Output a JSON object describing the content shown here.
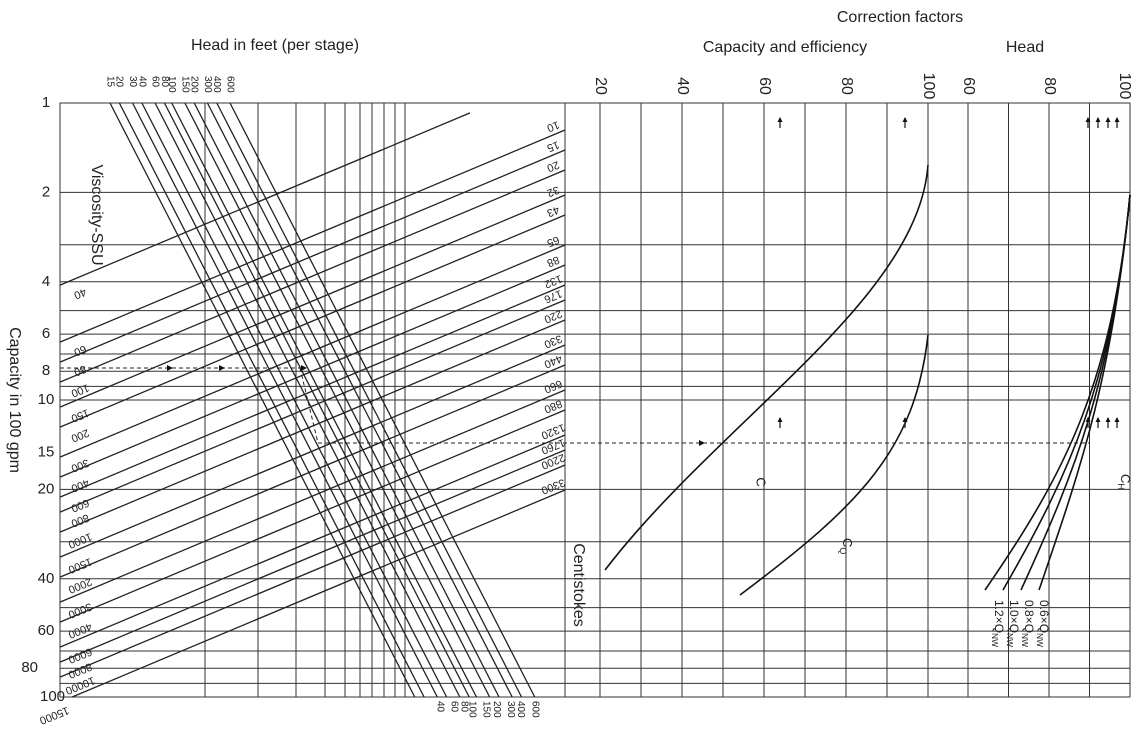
{
  "header": {
    "correction_factors": "Correction factors",
    "head_in_feet": "Head in feet (per stage)",
    "capacity_efficiency": "Capacity and efficiency",
    "head": "Head"
  },
  "axes": {
    "capacity_label": "Capacity in 100 gpm",
    "capacity_ticks": [
      "1",
      "2",
      "4",
      "6",
      "8",
      "10",
      "15",
      "20",
      "40",
      "60",
      "80",
      "100"
    ],
    "efficiency_ticks": [
      "20",
      "40",
      "60",
      "80",
      "100"
    ],
    "head_factor_ticks": [
      "60",
      "80",
      "100"
    ],
    "head_feet_top": [
      "15",
      "20",
      "30",
      "40",
      "60",
      "80",
      "100",
      "150",
      "200",
      "300",
      "400",
      "600"
    ],
    "head_feet_bottom": [
      "40",
      "60",
      "80",
      "100",
      "150",
      "200",
      "300",
      "400",
      "600"
    ]
  },
  "viscosity": {
    "ssu_label": "Viscosity-SSU",
    "cst_label": "Centistokes",
    "ssu": [
      "40",
      "60",
      "80",
      "100",
      "150",
      "200",
      "300",
      "400",
      "600",
      "800",
      "1000",
      "1500",
      "2000",
      "3000",
      "4000",
      "6000",
      "8000",
      "10000",
      "15000"
    ],
    "cst": [
      "10",
      "15",
      "20",
      "32",
      "43",
      "65",
      "88",
      "132",
      "176",
      "220",
      "330",
      "440",
      "660",
      "880",
      "1320",
      "1760",
      "2200",
      "3300"
    ]
  },
  "curves": {
    "efficiency": "C",
    "capacity": {
      "text": "C",
      "sub": "Q"
    },
    "head": {
      "text": "C",
      "sub": "H"
    },
    "flows": [
      {
        "text": "0.6×Q",
        "sub": "NW"
      },
      {
        "text": "0.8×Q",
        "sub": "NW"
      },
      {
        "text": "1.0×Q",
        "sub": "NW"
      },
      {
        "text": "1.2×Q",
        "sub": "NW"
      }
    ]
  }
}
